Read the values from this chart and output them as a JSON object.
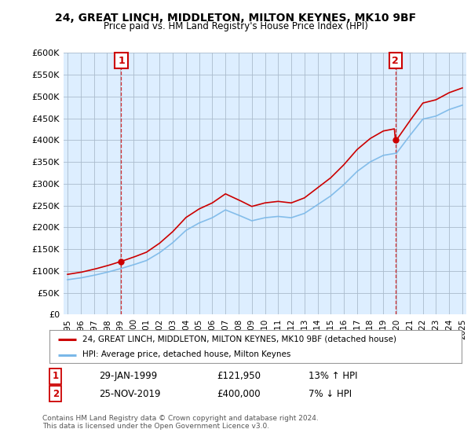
{
  "title": "24, GREAT LINCH, MIDDLETON, MILTON KEYNES, MK10 9BF",
  "subtitle": "Price paid vs. HM Land Registry's House Price Index (HPI)",
  "legend_line1": "24, GREAT LINCH, MIDDLETON, MILTON KEYNES, MK10 9BF (detached house)",
  "legend_line2": "HPI: Average price, detached house, Milton Keynes",
  "annotation1_label": "1",
  "annotation1_date": "29-JAN-1999",
  "annotation1_price": "£121,950",
  "annotation1_hpi": "13% ↑ HPI",
  "annotation2_label": "2",
  "annotation2_date": "25-NOV-2019",
  "annotation2_price": "£400,000",
  "annotation2_hpi": "7% ↓ HPI",
  "footer": "Contains HM Land Registry data © Crown copyright and database right 2024.\nThis data is licensed under the Open Government Licence v3.0.",
  "hpi_color": "#7ab8e8",
  "price_color": "#cc0000",
  "annotation_color": "#cc0000",
  "plot_bg_color": "#ddeeff",
  "background_color": "#ffffff",
  "grid_color": "#aabbcc"
}
